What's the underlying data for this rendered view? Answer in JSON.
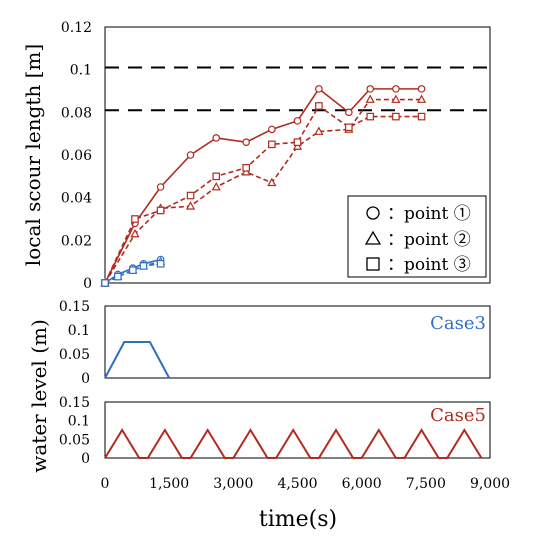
{
  "chart_data": [
    {
      "type": "line",
      "ylabel": "local scour length [m]",
      "ylim": [
        0,
        0.12
      ],
      "yticks": [
        0,
        0.02,
        0.04,
        0.06,
        0.08,
        0.1,
        0.12
      ],
      "ytick_labels": [
        "0",
        "0.02",
        "0.04",
        "0.06",
        "0.08",
        "0.1",
        "0.12"
      ],
      "xlim": [
        0,
        9000
      ],
      "grid": false,
      "legend_position": "bottom-right",
      "legend": [
        {
          "symbol": "circle",
          "label": "：point ①"
        },
        {
          "symbol": "triangle",
          "label": "：point ②"
        },
        {
          "symbol": "square",
          "label": "：point ③"
        }
      ],
      "reference_lines": [
        0.101,
        0.081
      ],
      "series": [
        {
          "case": "Case5",
          "marker": "circle",
          "style": "solid",
          "color": "#b22a1e",
          "x": [
            0,
            700,
            1300,
            2000,
            2600,
            3300,
            3900,
            4500,
            5000,
            5700,
            6200,
            6800,
            7400
          ],
          "y": [
            0,
            0.028,
            0.045,
            0.06,
            0.068,
            0.066,
            0.072,
            0.076,
            0.091,
            0.08,
            0.091,
            0.091,
            0.091
          ]
        },
        {
          "case": "Case5",
          "marker": "triangle",
          "style": "dashed",
          "color": "#b22a1e",
          "x": [
            0,
            700,
            1300,
            2000,
            2600,
            3300,
            3900,
            4500,
            5000,
            5700,
            6200,
            6800,
            7400
          ],
          "y": [
            0,
            0.023,
            0.035,
            0.036,
            0.045,
            0.052,
            0.047,
            0.064,
            0.071,
            0.072,
            0.086,
            0.086,
            0.086
          ]
        },
        {
          "case": "Case5",
          "marker": "square",
          "style": "dashed",
          "color": "#b22a1e",
          "x": [
            0,
            700,
            1300,
            2000,
            2600,
            3300,
            3900,
            4500,
            5000,
            5700,
            6200,
            6800,
            7400
          ],
          "y": [
            0,
            0.03,
            0.034,
            0.041,
            0.05,
            0.054,
            0.065,
            0.066,
            0.083,
            0.073,
            0.078,
            0.078,
            0.078
          ]
        },
        {
          "case": "Case3",
          "marker": "circle",
          "style": "solid",
          "color": "#2e6fc4",
          "x": [
            0,
            300,
            650,
            900,
            1300
          ],
          "y": [
            0,
            0.004,
            0.007,
            0.009,
            0.011
          ]
        },
        {
          "case": "Case3",
          "marker": "triangle",
          "style": "dashed",
          "color": "#2e6fc4",
          "x": [
            0,
            300,
            650,
            900,
            1300
          ],
          "y": [
            0,
            0.003,
            0.006,
            0.008,
            0.01
          ]
        },
        {
          "case": "Case3",
          "marker": "square",
          "style": "dashed",
          "color": "#2e6fc4",
          "x": [
            0,
            300,
            650,
            900,
            1300
          ],
          "y": [
            0,
            0.003,
            0.006,
            0.008,
            0.009
          ]
        }
      ]
    },
    {
      "type": "line",
      "title": "Case3",
      "ylim": [
        0,
        0.15
      ],
      "yticks": [
        0,
        0.05,
        0.1,
        0.15
      ],
      "ytick_labels": [
        "0",
        "0.05",
        "0.1",
        "0.15"
      ],
      "xlim": [
        0,
        9000
      ],
      "color": "#2e6fc4",
      "x": [
        0,
        450,
        1050,
        1500
      ],
      "y": [
        0,
        0.075,
        0.075,
        0
      ]
    },
    {
      "type": "line",
      "title": "Case5",
      "ylim": [
        0,
        0.15
      ],
      "yticks": [
        0,
        0.05,
        0.1,
        0.15
      ],
      "ytick_labels": [
        "0",
        "0.05",
        "0.1",
        "0.15"
      ],
      "xlim": [
        0,
        9000
      ],
      "xticks": [
        0,
        1500,
        3000,
        4500,
        6000,
        7500,
        9000
      ],
      "xtick_labels": [
        "0",
        "1,500",
        "3,000",
        "4,500",
        "6,000",
        "7,500",
        "9,000"
      ],
      "xlabel": "time(s)",
      "color": "#b22a1e",
      "x": [
        0,
        400,
        800,
        1000,
        1400,
        1800,
        2000,
        2400,
        2800,
        3000,
        3400,
        3800,
        4000,
        4400,
        4800,
        5000,
        5400,
        5800,
        6000,
        6400,
        6800,
        7000,
        7400,
        7800,
        8000,
        8400,
        8800
      ],
      "y": [
        0,
        0.075,
        0,
        0,
        0.075,
        0,
        0,
        0.075,
        0,
        0,
        0.075,
        0,
        0,
        0.075,
        0,
        0,
        0.075,
        0,
        0,
        0.075,
        0,
        0,
        0.075,
        0,
        0,
        0.075,
        0
      ]
    }
  ],
  "shared_ylabel": "water level (m)"
}
